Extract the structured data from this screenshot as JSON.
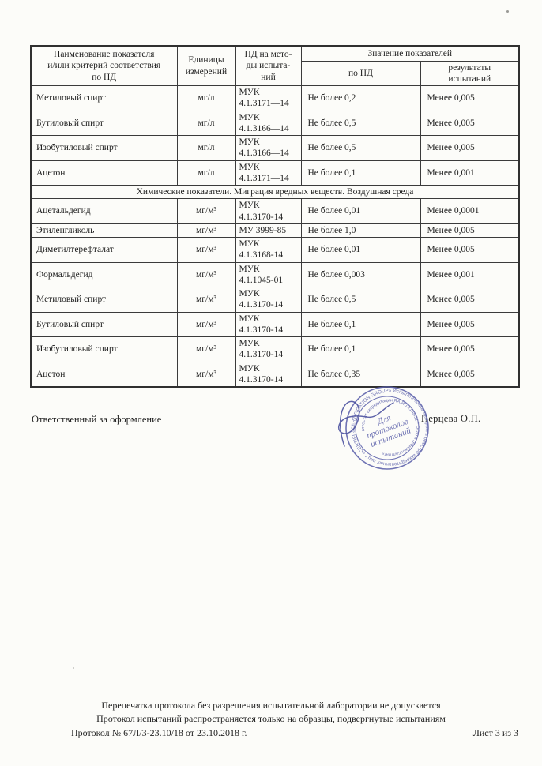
{
  "table": {
    "header": {
      "name": "Наименование показателя\nи/или критерий соответствия\nпо НД",
      "units": "Единицы\nизмерений",
      "method": "НД на мето-\nды испыта-\nний",
      "values_group": "Значение показателей",
      "by_nd": "по НД",
      "results": "результаты\nиспытаний"
    },
    "rows": [
      {
        "name": "Метиловый спирт",
        "unit": "мг/л",
        "method": "МУК\n4.1.3171—14",
        "norm": "Не более 0,2",
        "result": "Менее 0,005"
      },
      {
        "name": "Бутиловый спирт",
        "unit": "мг/л",
        "method": "МУК\n4.1.3166—14",
        "norm": "Не более 0,5",
        "result": "Менее 0,005"
      },
      {
        "name": "Изобутиловый спирт",
        "unit": "мг/л",
        "method": "МУК\n4.1.3166—14",
        "norm": "Не более 0,5",
        "result": "Менее 0,005"
      },
      {
        "name": "Ацетон",
        "unit": "мг/л",
        "method": "МУК\n4.1.3171—14",
        "norm": "Не более 0,1",
        "result": "Менее 0,001"
      },
      {
        "section": "Химические показатели. Миграция вредных веществ. Воздушная среда"
      },
      {
        "name": "Ацетальдегид",
        "unit": "мг/м³",
        "method": "МУК\n4.1.3170-14",
        "norm": "Не более 0,01",
        "result": "Менее 0,0001"
      },
      {
        "name": "Этиленгликоль",
        "unit": "мг/м³",
        "method": "МУ 3999-85",
        "norm": "Не более 1,0",
        "result": "Менее 0,005"
      },
      {
        "name": "Диметилтерефталат",
        "unit": "мг/м³",
        "method": "МУК\n4.1.3168-14",
        "norm": "Не более 0,01",
        "result": "Менее 0,005"
      },
      {
        "name": "Формальдегид",
        "unit": "мг/м³",
        "method": "МУК\n4.1.1045-01",
        "norm": "Не более 0,003",
        "result": "Менее 0,001"
      },
      {
        "name": "Метиловый спирт",
        "unit": "мг/м³",
        "method": "МУК\n4.1.3170-14",
        "norm": "Не более 0,5",
        "result": "Менее 0,005"
      },
      {
        "name": "Бутиловый спирт",
        "unit": "мг/м³",
        "method": "МУК\n4.1.3170-14",
        "norm": "Не более 0,1",
        "result": "Менее 0,005"
      },
      {
        "name": "Изобутиловый спирт",
        "unit": "мг/м³",
        "method": "МУК\n4.1.3170-14",
        "norm": "Не более 0,1",
        "result": "Менее 0,005"
      },
      {
        "name": "Ацетон",
        "unit": "мг/м³",
        "method": "МУК\n4.1.3170-14",
        "norm": "Не более 0,35",
        "result": "Менее 0,005"
      }
    ]
  },
  "signature": {
    "label": "Ответственный за оформление",
    "signer": "Перцева  О.П."
  },
  "stamp": {
    "color": "#5c61ab",
    "outer_ring": "«CERTIFICATION GROUP» Испытательным центром в реестре аккредитованных лиц  *  «CERTIFICATION GROUP»  *",
    "inner_ring": "аттестат аккредитации RA.RU.21АН51  *  ООО «Трансконсалтинг»",
    "center": [
      "Для",
      "протоколов",
      "испытаний"
    ]
  },
  "footer": {
    "line1": "Перепечатка протокола без разрешения испытательной лаборатории не допускается",
    "line2": "Протокол испытаний распространяется только на образцы, подвергнутые испытаниям",
    "protocol_number": "Протокол № 67Л/3-23.10/18 от 23.10.2018 г.",
    "sheet": "Лист 3 из 3"
  }
}
